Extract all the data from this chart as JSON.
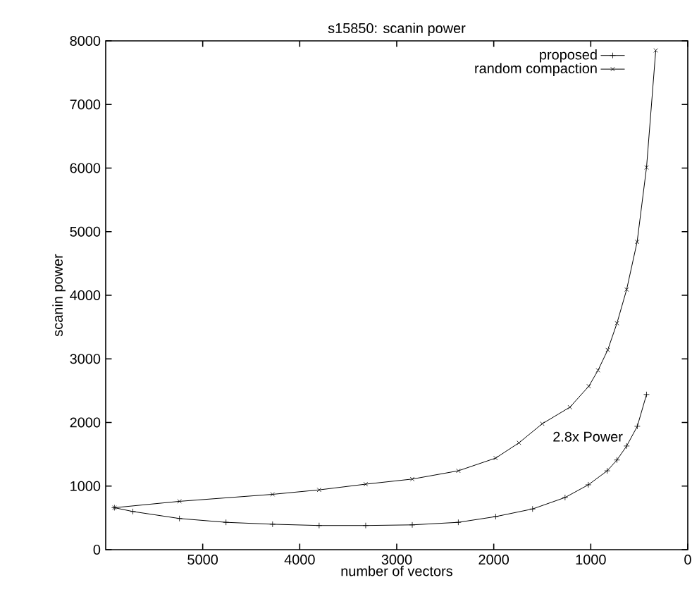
{
  "chart_data": {
    "type": "line",
    "title": "s15850: scanin power",
    "xlabel": "number of vectors",
    "ylabel": "scanin power",
    "xlim": [
      6000,
      0
    ],
    "xticks": [
      5000,
      4000,
      3000,
      2000,
      1000,
      0
    ],
    "ylim": [
      0,
      8000
    ],
    "yticks": [
      0,
      1000,
      2000,
      3000,
      4000,
      5000,
      6000,
      7000,
      8000
    ],
    "legend": "top right",
    "grid": false,
    "line_style": "solid",
    "annotations": [
      "2.8x Power"
    ],
    "series": [
      {
        "name": "proposed",
        "color": "#000000",
        "marker": "plus",
        "x": [
          5910,
          5720,
          5240,
          4760,
          4280,
          3800,
          3320,
          2840,
          2365,
          1980,
          1600,
          1265,
          1025,
          830,
          730,
          630,
          520,
          425
        ],
        "values": [
          660,
          600,
          490,
          430,
          400,
          380,
          380,
          390,
          430,
          520,
          640,
          820,
          1020,
          1240,
          1410,
          1630,
          1940,
          2440
        ]
      },
      {
        "name": "random compaction",
        "color": "#000000",
        "marker": "cross",
        "x": [
          5910,
          5240,
          4280,
          3800,
          3320,
          2840,
          2365,
          1980,
          1740,
          1500,
          1215,
          1020,
          925,
          825,
          730,
          630,
          522,
          425,
          330
        ],
        "values": [
          660,
          760,
          870,
          940,
          1030,
          1110,
          1240,
          1440,
          1680,
          1980,
          2240,
          2570,
          2820,
          3140,
          3560,
          4090,
          4840,
          6010,
          7850
        ]
      }
    ]
  }
}
